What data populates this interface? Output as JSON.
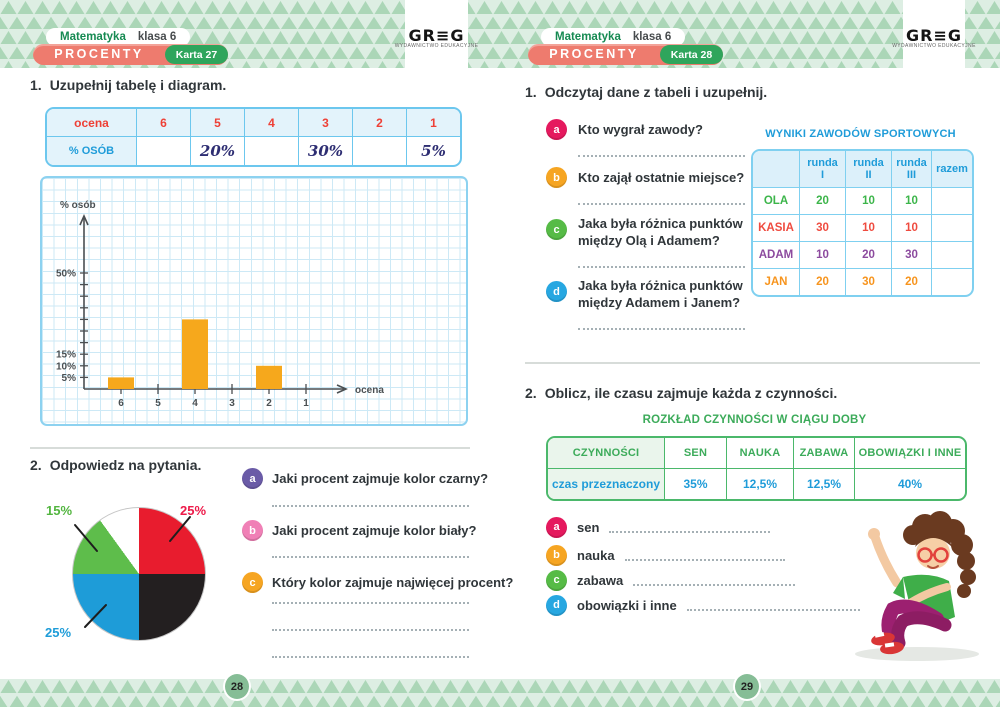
{
  "chart_data": [
    {
      "type": "bar",
      "title": "",
      "xlabel": "ocena",
      "ylabel": "% osób",
      "categories": [
        "6",
        "5",
        "4",
        "3",
        "2",
        "1"
      ],
      "values": [
        5,
        null,
        30,
        null,
        10,
        null
      ],
      "unit": "%",
      "y_ticks": [
        {
          "label": "5%",
          "value": 5
        },
        {
          "label": "10%",
          "value": 10
        },
        {
          "label": "15%",
          "value": 15
        },
        {
          "label": "50%",
          "value": 50
        }
      ],
      "ylim": [
        0,
        90
      ],
      "grid": true,
      "bar_color": "#f6a81c"
    },
    {
      "type": "pie",
      "start_angle_deg": 0,
      "direction": "clockwise",
      "slices": [
        {
          "name": "red",
          "value": 25,
          "color": "#e81c2e",
          "label": "25%",
          "label_color": "#ed1a49"
        },
        {
          "name": "black",
          "value": 25,
          "color": "#231f20",
          "label": "",
          "label_color": ""
        },
        {
          "name": "blue",
          "value": 25,
          "color": "#1e9cd8",
          "label": "25%",
          "label_color": "#1e9cd8"
        },
        {
          "name": "green",
          "value": 15,
          "color": "#5ebd4b",
          "label": "15%",
          "label_color": "#52b53f"
        },
        {
          "name": "white",
          "value": 10,
          "color": "#ffffff",
          "label": "",
          "label_color": ""
        }
      ]
    }
  ],
  "left_page": {
    "header": {
      "subject": "Matematyka",
      "grade": "klasa 6",
      "topic": "PROCENTY",
      "card": "Karta 27"
    },
    "logo": {
      "name": "GR≡G",
      "tagline": "WYDAWNICTWO EDUKACYJNE"
    },
    "task1_num": "1.",
    "task1": "Uzupełnij tabelę i diagram.",
    "grades_table": {
      "header_label": "ocena",
      "row_label": "% OSÓB",
      "columns": [
        "6",
        "5",
        "4",
        "3",
        "2",
        "1"
      ],
      "values": [
        "",
        "20%",
        "",
        "30%",
        "",
        "5%"
      ]
    },
    "task2_num": "2.",
    "task2": "Odpowiedz na pytania.",
    "questions": [
      {
        "id": "a",
        "color": "#6a5ba7",
        "text": "Jaki procent zajmuje kolor czarny?"
      },
      {
        "id": "b",
        "color": "#f080b6",
        "text": "Jaki procent zajmuje kolor biały?"
      },
      {
        "id": "c",
        "color": "#f6a522",
        "text": "Który kolor zajmuje najwięcej procent?"
      }
    ],
    "page_number": "28"
  },
  "right_page": {
    "header": {
      "subject": "Matematyka",
      "grade": "klasa 6",
      "topic": "PROCENTY",
      "card": "Karta 28"
    },
    "logo": {
      "name": "GR≡G",
      "tagline": "WYDAWNICTWO EDUKACYJNE"
    },
    "task1_num": "1.",
    "task1": "Odczytaj dane z tabeli i uzupełnij.",
    "questions": [
      {
        "id": "a",
        "color": "#e5195e",
        "text": "Kto wygrał zawody?"
      },
      {
        "id": "b",
        "color": "#f6a522",
        "text": "Kto zajął ostatnie miejsce?"
      },
      {
        "id": "c",
        "color": "#56bb46",
        "text": "Jaka była różnica punktów między Olą i Adamem?"
      },
      {
        "id": "d",
        "color": "#27a7e1",
        "text": "Jaka była różnica punktów między Adamem i Janem?"
      }
    ],
    "results_table": {
      "title": "WYNIKI ZAWODÓW SPORTOWYCH",
      "col_headers": [
        "runda I",
        "runda II",
        "runda III",
        "razem"
      ],
      "rows": [
        {
          "name": "OLA",
          "color": "#3cb54a",
          "values": [
            "20",
            "10",
            "10",
            ""
          ]
        },
        {
          "name": "KASIA",
          "color": "#ef4b3f",
          "values": [
            "30",
            "10",
            "10",
            ""
          ]
        },
        {
          "name": "ADAM",
          "color": "#8c4a9e",
          "values": [
            "10",
            "20",
            "30",
            ""
          ]
        },
        {
          "name": "JAN",
          "color": "#f7941d",
          "values": [
            "20",
            "30",
            "20",
            ""
          ]
        }
      ]
    },
    "task2_num": "2.",
    "task2": "Oblicz, ile czasu zajmuje każda z czynności.",
    "day_table": {
      "title": "ROZKŁAD CZYNNOŚCI W CIĄGU DOBY",
      "header_label": "CZYNNOŚCI",
      "row_label": "czas przeznaczony",
      "columns": [
        "SEN",
        "NAUKA",
        "ZABAWA",
        "OBOWIĄZKI I INNE"
      ],
      "values": [
        "35%",
        "12,5%",
        "12,5%",
        "40%"
      ]
    },
    "items": [
      {
        "id": "a",
        "color": "#e5195e",
        "label": "sen"
      },
      {
        "id": "b",
        "color": "#f6a522",
        "label": "nauka"
      },
      {
        "id": "c",
        "color": "#56bb46",
        "label": "zabawa"
      },
      {
        "id": "d",
        "color": "#27a7e1",
        "label": "obowiązki i inne"
      }
    ],
    "page_number": "29"
  }
}
